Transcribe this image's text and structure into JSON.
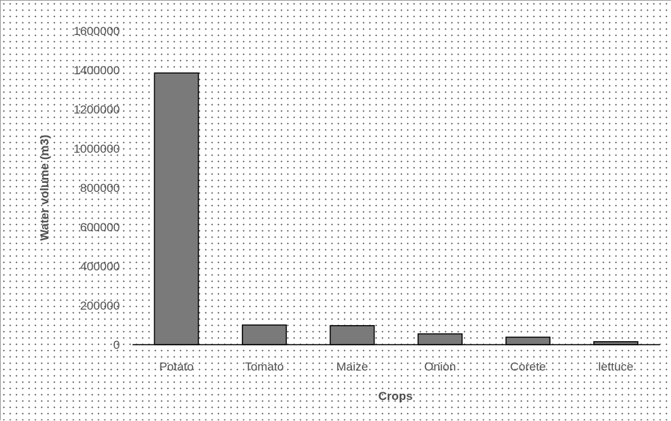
{
  "chart_data": {
    "type": "bar",
    "title": "",
    "xlabel": "Crops",
    "ylabel": "Water volume (m3)",
    "categories": [
      "Potato",
      "Tomato",
      "Maize",
      "Onion",
      "Corete",
      "lettuce"
    ],
    "values": [
      1385000,
      100000,
      97000,
      55000,
      38000,
      15000
    ],
    "ylim": [
      0,
      1600000
    ],
    "yticks": [
      0,
      200000,
      400000,
      600000,
      800000,
      1000000,
      1200000,
      1400000,
      1600000
    ],
    "ytick_labels": [
      "0",
      "200000",
      "400000",
      "600000",
      "800000",
      "1000000",
      "1200000",
      "1400000",
      "1600000"
    ],
    "grid": false,
    "legend": "none",
    "bar_color": "#7a7a7a",
    "bar_edge_color": "#000000"
  }
}
